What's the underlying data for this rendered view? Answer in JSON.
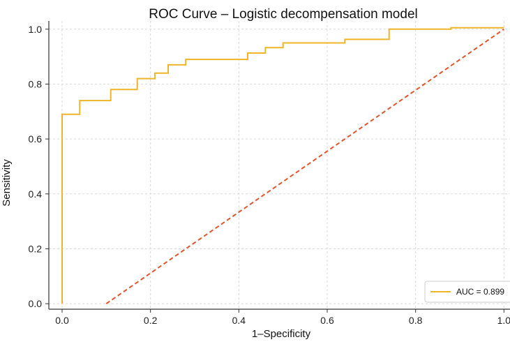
{
  "chart_data": {
    "type": "line",
    "title": "ROC Curve – Logistic decompensation model",
    "xlabel": "1–Specificity",
    "ylabel": "Sensitivity",
    "xlim": [
      -0.03,
      1.02
    ],
    "ylim": [
      -0.02,
      1.03
    ],
    "xticks": [
      "0.0",
      "0.2",
      "0.4",
      "0.6",
      "0.8",
      "1.0"
    ],
    "yticks": [
      "0.0",
      "0.2",
      "0.4",
      "0.6",
      "0.8",
      "1.0"
    ],
    "grid": true,
    "legend_position": "bottom-right",
    "series": [
      {
        "name": "AUC = 0.899",
        "style": "solid",
        "color": "#f0b429",
        "x": [
          0.0,
          0.0,
          0.0,
          0.04,
          0.04,
          0.11,
          0.11,
          0.17,
          0.17,
          0.21,
          0.21,
          0.24,
          0.24,
          0.28,
          0.28,
          0.42,
          0.42,
          0.46,
          0.46,
          0.5,
          0.5,
          0.64,
          0.64,
          0.74,
          0.74,
          0.88,
          0.88,
          1.0
        ],
        "y": [
          0.0,
          0.0,
          0.69,
          0.69,
          0.74,
          0.74,
          0.78,
          0.78,
          0.82,
          0.82,
          0.84,
          0.84,
          0.87,
          0.87,
          0.89,
          0.89,
          0.913,
          0.913,
          0.933,
          0.933,
          0.95,
          0.95,
          0.963,
          0.963,
          1.0,
          1.0,
          1.005,
          1.005
        ]
      },
      {
        "name": "",
        "style": "dashed",
        "color": "#e2552b",
        "x": [
          0.1,
          1.0
        ],
        "y": [
          0.0,
          1.0
        ]
      }
    ]
  }
}
